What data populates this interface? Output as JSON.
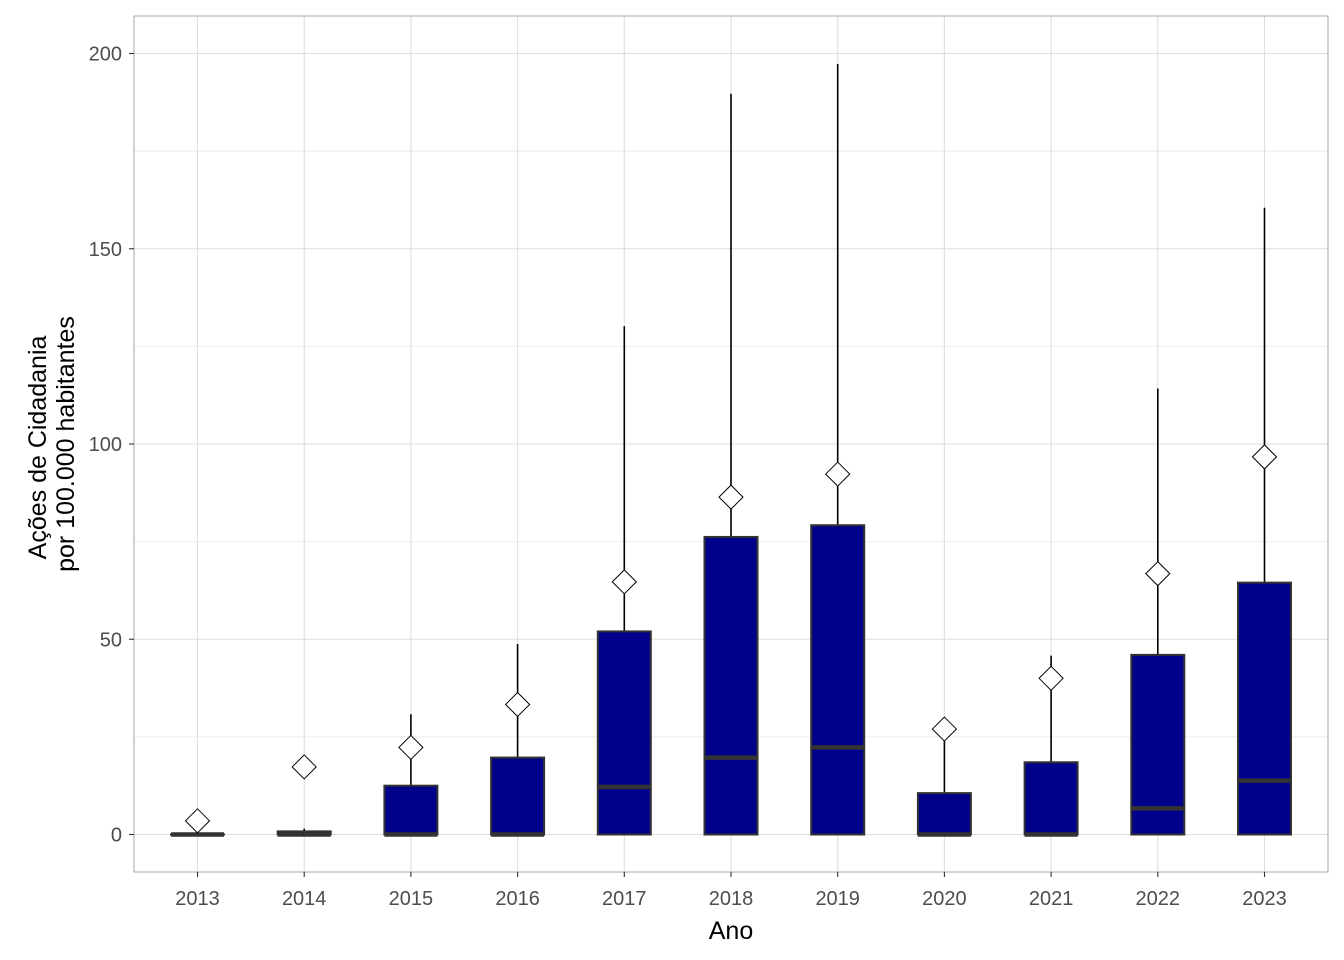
{
  "chart_data": {
    "type": "boxplot",
    "title": "",
    "xlabel": "Ano",
    "ylabel_lines": [
      "Ações de Cidadania",
      "por 100.000 habitantes"
    ],
    "ylim": [
      -10,
      210
    ],
    "yticks": [
      0,
      50,
      100,
      150,
      200
    ],
    "grid": true,
    "colors": {
      "box_fill": "#00008B",
      "box_outline": "#333333",
      "whisker": "#000000",
      "mean_marker": "#ffffff",
      "grid": "#dedede",
      "panel_border": "#b3b3b3"
    },
    "mean_marker_shape": "diamond",
    "categories": [
      "2013",
      "2014",
      "2015",
      "2016",
      "2017",
      "2018",
      "2019",
      "2020",
      "2021",
      "2022",
      "2023"
    ],
    "boxes": [
      {
        "x": "2013",
        "min": 0,
        "q1": 0,
        "median": 0,
        "q3": 0,
        "max": 0,
        "mean": 3.5
      },
      {
        "x": "2014",
        "min": 0,
        "q1": 0,
        "median": 0,
        "q3": 0.8,
        "max": 1.5,
        "mean": 17.3
      },
      {
        "x": "2015",
        "min": 0,
        "q1": 0,
        "median": 0,
        "q3": 12.5,
        "max": 30.8,
        "mean": 22.3
      },
      {
        "x": "2016",
        "min": 0,
        "q1": 0,
        "median": 0,
        "q3": 19.7,
        "max": 48.8,
        "mean": 33.3
      },
      {
        "x": "2017",
        "min": 0,
        "q1": 0,
        "median": 12.2,
        "q3": 52.0,
        "max": 130.2,
        "mean": 64.7
      },
      {
        "x": "2018",
        "min": 0,
        "q1": 0,
        "median": 19.7,
        "q3": 76.2,
        "max": 189.7,
        "mean": 86.4
      },
      {
        "x": "2019",
        "min": 0,
        "q1": 0,
        "median": 22.3,
        "q3": 79.2,
        "max": 197.3,
        "mean": 92.3
      },
      {
        "x": "2020",
        "min": 0,
        "q1": 0,
        "median": 0,
        "q3": 10.6,
        "max": 24.3,
        "mean": 27.0
      },
      {
        "x": "2021",
        "min": 0,
        "q1": 0,
        "median": 0,
        "q3": 18.5,
        "max": 45.8,
        "mean": 40.0
      },
      {
        "x": "2022",
        "min": 0,
        "q1": 0,
        "median": 6.7,
        "q3": 46.0,
        "max": 114.2,
        "mean": 66.8
      },
      {
        "x": "2023",
        "min": 0,
        "q1": 0,
        "median": 13.8,
        "q3": 64.5,
        "max": 160.5,
        "mean": 96.7
      }
    ]
  }
}
